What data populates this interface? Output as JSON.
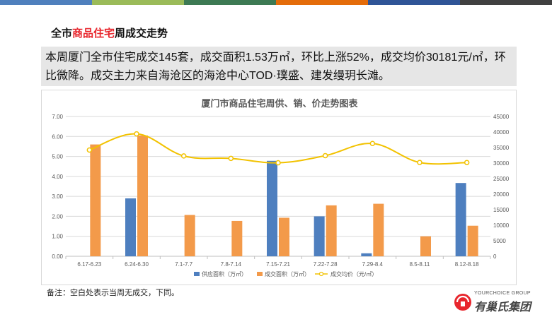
{
  "title": {
    "prefix": "全市",
    "highlight": "商品住宅",
    "suffix": "周成交走势"
  },
  "summary": "本周厦门全市住宅成交145套，成交面积1.53万㎡，环比上涨52%，成交均价30181元/㎡，环比微降。成交主力来自海沧区的海沧中心TOD·璞盛、建发缦玥长滩。",
  "note": "备注：空白处表示当周无成交，下同。",
  "logo": {
    "en": "YOURCHOICE GROUP",
    "cn": "有巢氏集团"
  },
  "colors": {
    "supply": "#4e7fbf",
    "deal": "#f39a4a",
    "price": "#f2c200",
    "highlight": "#e8262d"
  },
  "chart_data": {
    "type": "bar",
    "title": "厦门市商品住宅周供、销、价走势图表",
    "categories": [
      "6.17-6.23",
      "6.24-6.30",
      "7.1-7.7",
      "7.8-7.14",
      "7.15-7.21",
      "7.22-7.28",
      "7.29-8.4",
      "8.5-8.11",
      "8.12-8.18"
    ],
    "series": [
      {
        "name": "供应面积（万㎡）",
        "type": "bar",
        "axis": "left",
        "values": [
          null,
          2.9,
          null,
          null,
          4.78,
          2.0,
          0.15,
          null,
          3.67
        ]
      },
      {
        "name": "成交面积（万㎡）",
        "type": "bar",
        "axis": "left",
        "values": [
          5.6,
          6.05,
          2.07,
          1.77,
          1.93,
          2.55,
          2.63,
          1.0,
          1.53
        ]
      },
      {
        "name": "成交均价（元/㎡）",
        "type": "line",
        "axis": "right",
        "values": [
          34200,
          39400,
          32300,
          31500,
          30100,
          32400,
          36300,
          30200,
          30181
        ]
      }
    ],
    "y_left": {
      "min": 0,
      "max": 7,
      "ticks": [
        "0.00",
        "1.00",
        "2.00",
        "3.00",
        "4.00",
        "5.00",
        "6.00",
        "7.00"
      ]
    },
    "y_right": {
      "min": 0,
      "max": 45000,
      "ticks": [
        "0",
        "5000",
        "10000",
        "15000",
        "20000",
        "25000",
        "30000",
        "35000",
        "40000",
        "45000"
      ]
    },
    "grid": true,
    "legend": "bottom"
  }
}
